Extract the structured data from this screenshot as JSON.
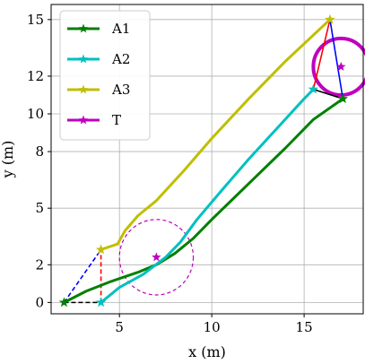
{
  "chart_data": {
    "type": "line",
    "xlabel": "x (m)",
    "ylabel": "y (m)",
    "xlim": [
      1.3,
      18.2
    ],
    "ylim": [
      -0.6,
      15.8
    ],
    "xticks": [
      5,
      10,
      15
    ],
    "yticks": [
      0,
      2,
      5,
      8,
      10,
      12,
      15
    ],
    "grid": true,
    "legend_position": "top-left",
    "series": [
      {
        "name": "A1",
        "color": "#008000",
        "points": [
          [
            2.0,
            0.0
          ],
          [
            3.2,
            0.6
          ],
          [
            4.5,
            1.1
          ],
          [
            6.0,
            1.6
          ],
          [
            7.0,
            2.0
          ],
          [
            8.0,
            2.6
          ],
          [
            9.0,
            3.4
          ],
          [
            10.0,
            4.4
          ],
          [
            12.0,
            6.3
          ],
          [
            14.0,
            8.2
          ],
          [
            15.5,
            9.7
          ],
          [
            17.1,
            10.8
          ]
        ]
      },
      {
        "name": "A2",
        "color": "#00c0c0",
        "points": [
          [
            4.0,
            0.0
          ],
          [
            5.0,
            0.8
          ],
          [
            6.3,
            1.5
          ],
          [
            7.5,
            2.4
          ],
          [
            8.3,
            3.2
          ],
          [
            9.2,
            4.4
          ],
          [
            10.5,
            5.9
          ],
          [
            12.0,
            7.6
          ],
          [
            13.5,
            9.2
          ],
          [
            15.0,
            10.8
          ],
          [
            15.5,
            11.3
          ]
        ]
      },
      {
        "name": "A3",
        "color": "#bfbf00",
        "points": [
          [
            4.0,
            2.8
          ],
          [
            4.9,
            3.1
          ],
          [
            5.3,
            3.8
          ],
          [
            6.0,
            4.6
          ],
          [
            7.0,
            5.4
          ],
          [
            8.5,
            7.0
          ],
          [
            10.0,
            8.7
          ],
          [
            12.0,
            10.8
          ],
          [
            14.0,
            12.8
          ],
          [
            16.4,
            15.0
          ]
        ]
      },
      {
        "name": "T",
        "color": "#bf00bf",
        "marker_points": [
          [
            7.0,
            2.4
          ],
          [
            17.0,
            12.5
          ]
        ]
      }
    ],
    "annotations": {
      "circles": [
        {
          "center": [
            7.0,
            2.4
          ],
          "radius": 2.0,
          "color": "#bf00bf",
          "style": "dashed"
        },
        {
          "center": [
            17.0,
            12.5
          ],
          "radius": 1.5,
          "color": "#bf00bf",
          "style": "solid"
        }
      ],
      "triangles": [
        {
          "style": "dashed",
          "edges": [
            {
              "from": [
                2.0,
                0.0
              ],
              "to": [
                4.0,
                0.0
              ],
              "color": "#000000"
            },
            {
              "from": [
                4.0,
                0.0
              ],
              "to": [
                4.0,
                2.8
              ],
              "color": "#ff0000"
            },
            {
              "from": [
                2.0,
                0.0
              ],
              "to": [
                4.0,
                2.8
              ],
              "color": "#0000ff"
            }
          ]
        },
        {
          "style": "solid",
          "edges": [
            {
              "from": [
                15.5,
                11.3
              ],
              "to": [
                17.1,
                10.8
              ],
              "color": "#000000"
            },
            {
              "from": [
                15.5,
                11.3
              ],
              "to": [
                16.4,
                15.0
              ],
              "color": "#ff0000"
            },
            {
              "from": [
                16.4,
                15.0
              ],
              "to": [
                17.1,
                10.8
              ],
              "color": "#0000ff"
            }
          ]
        }
      ]
    }
  }
}
